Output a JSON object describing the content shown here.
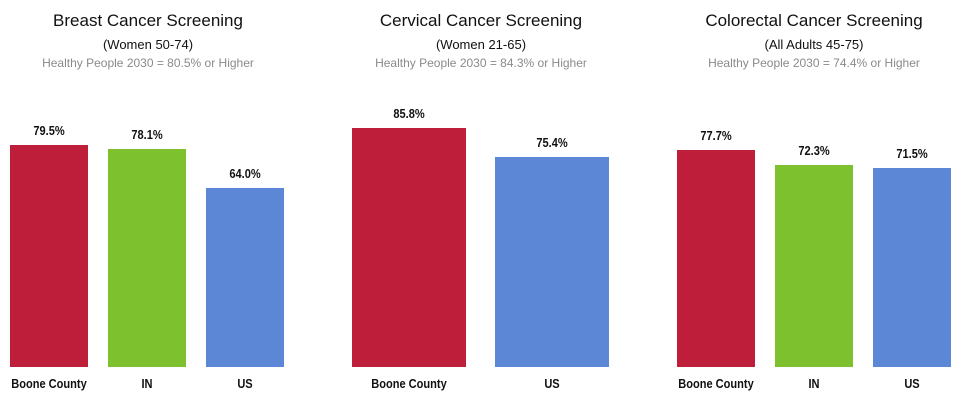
{
  "chart_data": [
    {
      "type": "bar",
      "title": "Breast Cancer Screening",
      "subtitle": "(Women 50-74)",
      "annotation": "Healthy People 2030 = 80.5% or Higher",
      "categories": [
        "Boone County",
        "IN",
        "US"
      ],
      "values": [
        79.5,
        78.1,
        64.0
      ],
      "value_labels": [
        "79.5%",
        "78.1%",
        "64.0%"
      ],
      "colors": [
        "#be1e3a",
        "#7dc12e",
        "#5b87d6"
      ],
      "ylim": [
        0,
        100
      ]
    },
    {
      "type": "bar",
      "title": "Cervical Cancer Screening",
      "subtitle": "(Women 21-65)",
      "annotation": "Healthy People 2030 = 84.3% or Higher",
      "categories": [
        "Boone County",
        "US"
      ],
      "values": [
        85.8,
        75.4
      ],
      "value_labels": [
        "85.8%",
        "75.4%"
      ],
      "colors": [
        "#be1e3a",
        "#5b87d6"
      ],
      "ylim": [
        0,
        100
      ]
    },
    {
      "type": "bar",
      "title": "Colorectal Cancer Screening",
      "subtitle": "(All Adults 45-75)",
      "annotation": "Healthy People 2030 = 74.4% or Higher",
      "categories": [
        "Boone County",
        "IN",
        "US"
      ],
      "values": [
        77.7,
        72.3,
        71.5
      ],
      "value_labels": [
        "77.7%",
        "72.3%",
        "71.5%"
      ],
      "colors": [
        "#be1e3a",
        "#7dc12e",
        "#5b87d6"
      ],
      "ylim": [
        0,
        100
      ]
    }
  ]
}
